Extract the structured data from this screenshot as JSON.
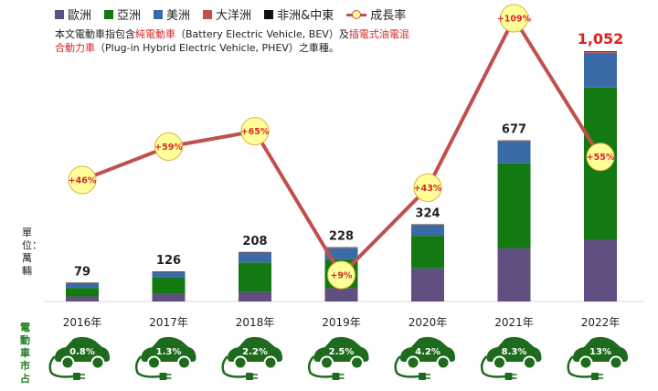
{
  "legend": {
    "europe": "歐洲",
    "asia": "亞洲",
    "americas": "美洲",
    "oceania": "大洋洲",
    "africa_me": "非洲&中東",
    "growth": "成長率"
  },
  "note": {
    "line1_a": "本文電動車指包含",
    "line1_b": "純電動車",
    "line1_c": "（Battery Electric Vehicle, BEV）及",
    "line1_d": "插電式油電混",
    "line2_a": "合動力車",
    "line2_b": "（Plug-in Hybrid Electric Vehicle, PHEV）之車種。"
  },
  "unit_label": "單位：萬輛",
  "share_label": "電動車市占",
  "colors": {
    "europe": "#624f82",
    "asia": "#137a13",
    "americas": "#3a6aa8",
    "oceania": "#c0504d",
    "africa_me": "#111111",
    "growth_line": "#c0504d",
    "growth_marker": "#ffff99",
    "car": "#1e6b1e"
  },
  "chart_data": {
    "type": "bar",
    "stacked": true,
    "categories": [
      "2016年",
      "2017年",
      "2018年",
      "2019年",
      "2020年",
      "2021年",
      "2022年"
    ],
    "totals": [
      79,
      126,
      208,
      228,
      324,
      677,
      1052
    ],
    "total_labels": [
      "79",
      "126",
      "208",
      "228",
      "324",
      "677",
      "1,052"
    ],
    "series": [
      {
        "name": "歐洲",
        "values": [
          21,
          31,
          39,
          56,
          139,
          223,
          259
        ]
      },
      {
        "name": "亞洲",
        "values": [
          36,
          69,
          125,
          121,
          137,
          358,
          640
        ]
      },
      {
        "name": "美洲",
        "values": [
          20,
          24,
          41,
          47,
          45,
          91,
          146
        ]
      },
      {
        "name": "大洋洲",
        "values": [
          1,
          1,
          2,
          2,
          2,
          3,
          5
        ]
      },
      {
        "name": "非洲&中東",
        "values": [
          1,
          1,
          1,
          2,
          1,
          2,
          2
        ]
      }
    ],
    "growth_rate": {
      "name": "成長率",
      "values": [
        46,
        59,
        65,
        9,
        43,
        109,
        55
      ],
      "labels": [
        "+46%",
        "+59%",
        "+65%",
        "+9%",
        "+43%",
        "+109%",
        "+55%"
      ]
    },
    "market_share": [
      "0.8%",
      "1.3%",
      "2.2%",
      "2.5%",
      "4.2%",
      "8.3%",
      "13%"
    ],
    "ylim": [
      0,
      1100
    ],
    "legend_position": "top"
  }
}
